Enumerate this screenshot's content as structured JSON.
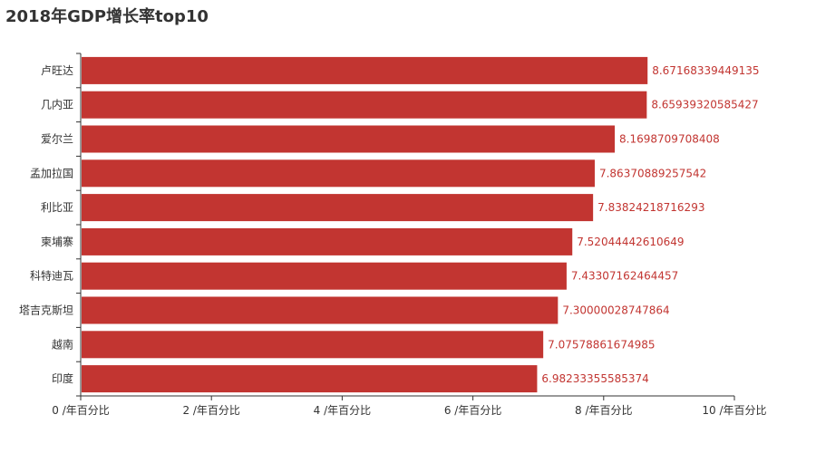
{
  "chart_data": {
    "type": "bar",
    "orientation": "horizontal",
    "title": "2018年GDP增长率top10",
    "categories": [
      "印度",
      "越南",
      "塔吉克斯坦",
      "科特迪瓦",
      "柬埔寨",
      "利比亚",
      "孟加拉国",
      "爱尔兰",
      "几内亚",
      "卢旺达"
    ],
    "values": [
      6.98233355585374,
      7.07578861674985,
      7.30000028747864,
      7.43307162464457,
      7.52044442610649,
      7.83824218716293,
      7.86370889257542,
      8.1698709708408,
      8.65939320585427,
      8.67168339449135
    ],
    "value_labels": [
      "6.98233355585374",
      "7.07578861674985",
      "7.30000028747864",
      "7.43307162464457",
      "7.52044442610649",
      "7.83824218716293",
      "7.86370889257542",
      "8.1698709708408",
      "8.65939320585427",
      "8.67168339449135"
    ],
    "xlim": [
      0,
      10
    ],
    "x_ticks": [
      0,
      2,
      4,
      6,
      8,
      10
    ],
    "x_tick_labels": [
      "0 /年百分比",
      "2 /年百分比",
      "4 /年百分比",
      "6 /年百分比",
      "8 /年百分比",
      "10 /年百分比"
    ],
    "xlabel": "",
    "ylabel": "",
    "grid": false,
    "bar_color": "#c23531",
    "label_color": "#c23531",
    "axis_color": "#333333"
  }
}
